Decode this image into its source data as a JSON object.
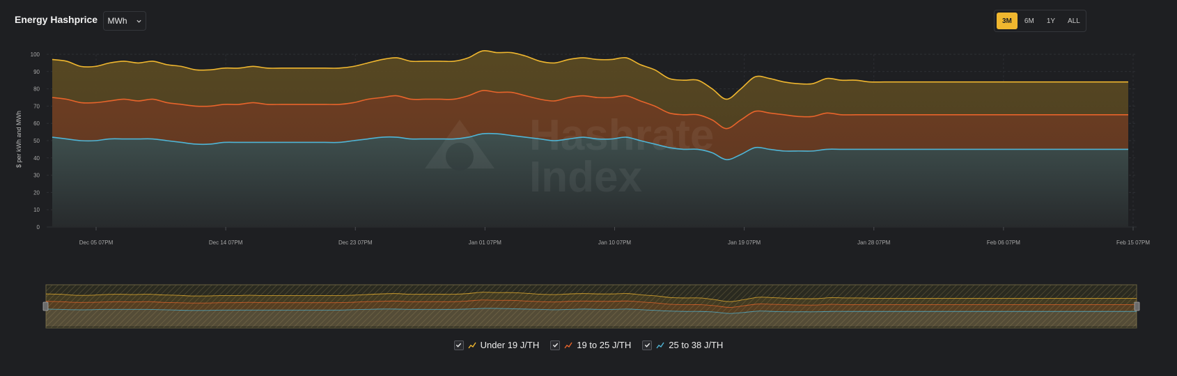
{
  "header": {
    "title": "Energy Hashprice",
    "unit_value": "MWh",
    "ranges": [
      "3M",
      "6M",
      "1Y",
      "ALL"
    ],
    "active_range": "3M"
  },
  "chart_data": {
    "type": "area",
    "ylabel": "$ per kWh and MWh",
    "ylim": [
      0,
      100
    ],
    "yticks": [
      0,
      10,
      20,
      30,
      40,
      50,
      60,
      70,
      80,
      90,
      100
    ],
    "xlabels": [
      "Dec 05 07PM",
      "Dec 14 07PM",
      "Dec 23 07PM",
      "Jan 01 07PM",
      "Jan 10 07PM",
      "Jan 19 07PM",
      "Jan 28 07PM",
      "Feb 06 07PM",
      "Feb 15 07PM"
    ],
    "x_days": [
      0,
      1,
      2,
      3,
      4,
      5,
      6,
      7,
      8,
      9,
      10,
      11,
      12,
      13,
      14,
      15,
      16,
      17,
      18,
      19,
      20,
      21,
      22,
      23,
      24,
      25,
      26,
      27,
      28,
      29,
      30,
      31,
      32,
      33,
      34,
      35,
      36,
      37,
      38,
      39,
      40,
      41,
      42,
      43,
      44,
      45,
      46,
      47,
      48,
      49,
      50,
      51,
      52,
      53,
      54,
      55,
      56,
      57,
      58,
      59,
      60,
      61,
      62,
      63,
      64,
      65,
      66,
      67,
      68,
      69,
      70,
      71,
      72,
      73,
      74,
      75
    ],
    "series": [
      {
        "name": "Under 19 J/TH",
        "color": "#f0b72f",
        "values": [
          97,
          96,
          93,
          93,
          95,
          96,
          95,
          96,
          94,
          93,
          91,
          91,
          92,
          92,
          93,
          92,
          92,
          92,
          92,
          92,
          92,
          93,
          95,
          97,
          98,
          96,
          96,
          96,
          96,
          98,
          102,
          101,
          101,
          99,
          96,
          95,
          97,
          98,
          97,
          97,
          98,
          94,
          91,
          86,
          85,
          85,
          80,
          74,
          80,
          87,
          86,
          84,
          83,
          83,
          86,
          85,
          85,
          84,
          84,
          84,
          84,
          84,
          84,
          84,
          84,
          84,
          84,
          84,
          84,
          84,
          84,
          84,
          84,
          84,
          84,
          84
        ]
      },
      {
        "name": "19 to 25 J/TH",
        "color": "#e8642b",
        "values": [
          75,
          74,
          72,
          72,
          73,
          74,
          73,
          74,
          72,
          71,
          70,
          70,
          71,
          71,
          72,
          71,
          71,
          71,
          71,
          71,
          71,
          72,
          74,
          75,
          76,
          74,
          74,
          74,
          74,
          76,
          79,
          78,
          78,
          76,
          74,
          73,
          75,
          76,
          75,
          75,
          76,
          73,
          70,
          66,
          65,
          65,
          62,
          57,
          62,
          67,
          66,
          65,
          64,
          64,
          66,
          65,
          65,
          65,
          65,
          65,
          65,
          65,
          65,
          65,
          65,
          65,
          65,
          65,
          65,
          65,
          65,
          65,
          65,
          65,
          65,
          65
        ]
      },
      {
        "name": "25 to 38 J/TH",
        "color": "#4fb5d6",
        "values": [
          52,
          51,
          50,
          50,
          51,
          51,
          51,
          51,
          50,
          49,
          48,
          48,
          49,
          49,
          49,
          49,
          49,
          49,
          49,
          49,
          49,
          50,
          51,
          52,
          52,
          51,
          51,
          51,
          51,
          52,
          54,
          54,
          53,
          52,
          51,
          50,
          51,
          52,
          51,
          51,
          52,
          50,
          48,
          46,
          45,
          45,
          43,
          39,
          42,
          46,
          45,
          44,
          44,
          44,
          45,
          45,
          45,
          45,
          45,
          45,
          45,
          45,
          45,
          45,
          45,
          45,
          45,
          45,
          45,
          45,
          45,
          45,
          45,
          45,
          45,
          45
        ]
      }
    ],
    "watermark": [
      "Hashrate",
      "Index"
    ],
    "legend_position": "bottom"
  }
}
